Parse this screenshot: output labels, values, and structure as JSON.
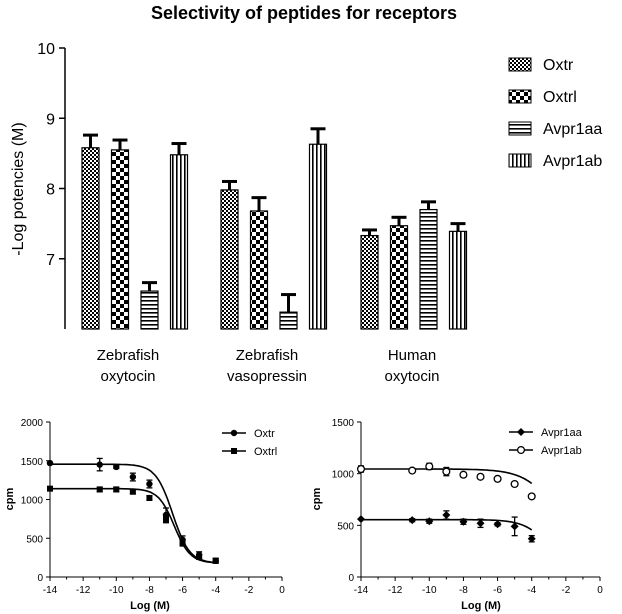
{
  "chart_data": [
    {
      "type": "bar",
      "title": "Selectivity of peptides for receptors",
      "ylabel": "-Log potencies (M)",
      "ylim": [
        6,
        10
      ],
      "yticks": [
        "10",
        "9",
        "8",
        "7"
      ],
      "categories": [
        [
          "Zebrafish",
          "oxytocin"
        ],
        [
          "Zebrafish",
          "vasopressin"
        ],
        [
          "Human",
          "oxytocin"
        ]
      ],
      "series": [
        {
          "name": "Oxtr",
          "pattern": "small-checker",
          "values": [
            8.58,
            7.98,
            7.33
          ],
          "errors": [
            0.18,
            0.12,
            0.08
          ]
        },
        {
          "name": "Oxtrl",
          "pattern": "checker",
          "values": [
            8.55,
            7.68,
            7.47
          ],
          "errors": [
            0.14,
            0.19,
            0.12
          ]
        },
        {
          "name": "Avpr1aa",
          "pattern": "horizontal-stripes",
          "values": [
            6.54,
            6.24,
            7.7
          ],
          "errors": [
            0.12,
            0.25,
            0.11
          ]
        },
        {
          "name": "Avpr1ab",
          "pattern": "vertical-stripes",
          "values": [
            8.48,
            8.63,
            7.39
          ],
          "errors": [
            0.16,
            0.22,
            0.11
          ]
        }
      ],
      "legend": "right",
      "grid": false
    },
    {
      "type": "line",
      "ylabel": "cpm",
      "xlabel": "Log  (M)",
      "xlim": [
        -14,
        0
      ],
      "ylim": [
        0,
        2000
      ],
      "xticks": [
        "-14",
        "-12",
        "-10",
        "-8",
        "-6",
        "-4",
        "-2",
        "0"
      ],
      "yticks": [
        "0",
        "500",
        "1000",
        "1500",
        "2000"
      ],
      "series": [
        {
          "name": "Oxtr",
          "marker": "circle-filled",
          "x": [
            -14,
            -11,
            -10,
            -9,
            -8,
            -7,
            -6,
            -5,
            -4
          ],
          "y": [
            1470,
            1450,
            1420,
            1290,
            1200,
            800,
            480,
            285,
            210
          ],
          "err": [
            0,
            80,
            20,
            50,
            50,
            90,
            50,
            40,
            30
          ],
          "fit": {
            "top": 1455,
            "bottom": 180,
            "logec50": -6.6,
            "hill": 0.85
          }
        },
        {
          "name": "Oxtrl",
          "marker": "square-filled",
          "x": [
            -14,
            -11,
            -10,
            -9,
            -8,
            -7,
            -6,
            -5,
            -4
          ],
          "y": [
            1140,
            1130,
            1130,
            1100,
            1020,
            750,
            440,
            260,
            210
          ],
          "err": [
            0,
            30,
            30,
            20,
            30,
            50,
            40,
            30,
            30
          ],
          "fit": {
            "top": 1140,
            "bottom": 180,
            "logec50": -6.5,
            "hill": 0.9
          }
        }
      ],
      "legend": "top-right"
    },
    {
      "type": "line",
      "ylabel": "cpm",
      "xlabel": "Log  (M)",
      "xlim": [
        -14,
        0
      ],
      "ylim": [
        0,
        1500
      ],
      "xticks": [
        "-14",
        "-12",
        "-10",
        "-8",
        "-6",
        "-4",
        "-2",
        "0"
      ],
      "yticks": [
        "0",
        "500",
        "1000",
        "1500"
      ],
      "series": [
        {
          "name": "Avpr1aa",
          "marker": "diamond-filled",
          "x": [
            -14,
            -11,
            -10,
            -9,
            -8,
            -7,
            -6,
            -5,
            -4
          ],
          "y": [
            560,
            550,
            540,
            600,
            535,
            520,
            510,
            490,
            370
          ],
          "err": [
            0,
            15,
            20,
            40,
            25,
            40,
            15,
            90,
            30
          ],
          "fit": {
            "top": 555,
            "bottom": 0,
            "logec50": -2.9,
            "hill": 0.6
          }
        },
        {
          "name": "Avpr1ab",
          "marker": "circle-open",
          "x": [
            -14,
            -11,
            -10,
            -9,
            -8,
            -7,
            -6,
            -5,
            -4
          ],
          "y": [
            1045,
            1030,
            1070,
            1020,
            990,
            970,
            950,
            900,
            780
          ],
          "err": [
            30,
            20,
            30,
            40,
            20,
            20,
            20,
            20,
            20
          ],
          "fit": {
            "top": 1045,
            "bottom": 0,
            "logec50": -2.2,
            "hill": 0.45
          }
        }
      ],
      "legend": "top-right"
    }
  ]
}
